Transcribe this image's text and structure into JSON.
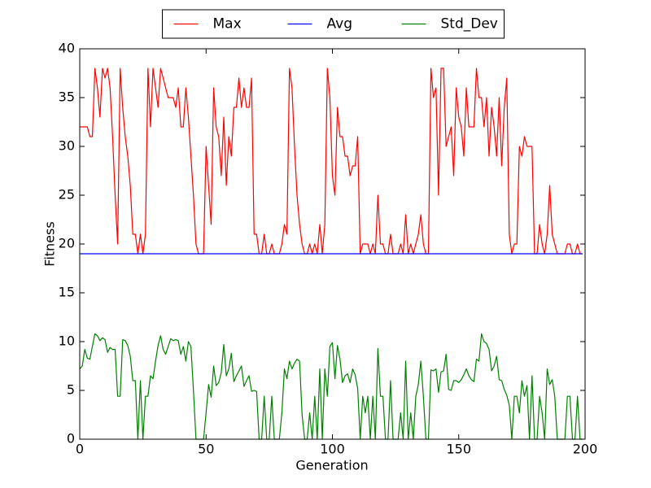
{
  "chart_data": {
    "type": "line",
    "xlabel": "Generation",
    "ylabel": "Fitness",
    "xlim": [
      0,
      200
    ],
    "xticks": [
      0,
      50,
      100,
      150,
      200
    ],
    "ylim": [
      0,
      40
    ],
    "yticks": [
      0,
      5,
      10,
      15,
      20,
      25,
      30,
      35,
      40
    ],
    "legend": "upper-center-outside",
    "x": [
      0,
      1,
      2,
      3,
      4,
      5,
      6,
      7,
      8,
      9,
      10,
      11,
      12,
      13,
      14,
      15,
      16,
      17,
      18,
      19,
      20,
      21,
      22,
      23,
      24,
      25,
      26,
      27,
      28,
      29,
      30,
      31,
      32,
      33,
      34,
      35,
      36,
      37,
      38,
      39,
      40,
      41,
      42,
      43,
      44,
      45,
      46,
      47,
      48,
      49,
      50,
      51,
      52,
      53,
      54,
      55,
      56,
      57,
      58,
      59,
      60,
      61,
      62,
      63,
      64,
      65,
      66,
      67,
      68,
      69,
      70,
      71,
      72,
      73,
      74,
      75,
      76,
      77,
      78,
      79,
      80,
      81,
      82,
      83,
      84,
      85,
      86,
      87,
      88,
      89,
      90,
      91,
      92,
      93,
      94,
      95,
      96,
      97,
      98,
      99,
      100,
      101,
      102,
      103,
      104,
      105,
      106,
      107,
      108,
      109,
      110,
      111,
      112,
      113,
      114,
      115,
      116,
      117,
      118,
      119,
      120,
      121,
      122,
      123,
      124,
      125,
      126,
      127,
      128,
      129,
      130,
      131,
      132,
      133,
      134,
      135,
      136,
      137,
      138,
      139,
      140,
      141,
      142,
      143,
      144,
      145,
      146,
      147,
      148,
      149,
      150,
      151,
      152,
      153,
      154,
      155,
      156,
      157,
      158,
      159,
      160,
      161,
      162,
      163,
      164,
      165,
      166,
      167,
      168,
      169,
      170,
      171,
      172,
      173,
      174,
      175,
      176,
      177,
      178,
      179,
      180,
      181,
      182,
      183,
      184,
      185,
      186,
      187,
      188,
      189,
      190,
      191,
      192,
      193,
      194,
      195,
      196,
      197,
      198,
      199
    ],
    "series": [
      {
        "name": "Max",
        "color": "#ff0000",
        "values": [
          32,
          32,
          32,
          32,
          31,
          31,
          38,
          36,
          33,
          38,
          37,
          38,
          36,
          31,
          25,
          20,
          38,
          34,
          31,
          29,
          26,
          21,
          21,
          19,
          21,
          19,
          21,
          38,
          32,
          38,
          36,
          34,
          38,
          37,
          36,
          35,
          35,
          35,
          34,
          36,
          32,
          32,
          36,
          33,
          29,
          25,
          20,
          19,
          19,
          19,
          30,
          26,
          22,
          36,
          32,
          31,
          27,
          33,
          26,
          31,
          29,
          34,
          34,
          37,
          34,
          36,
          34,
          34,
          37,
          21,
          21,
          19,
          19,
          21,
          19,
          19,
          20,
          19,
          19,
          19,
          20,
          22,
          21,
          38,
          36,
          30,
          25,
          22,
          20,
          19,
          19,
          20,
          19,
          20,
          19,
          22,
          19,
          22,
          38,
          35,
          27,
          25,
          34,
          31,
          31,
          29,
          29,
          27,
          28,
          28,
          31,
          19,
          20,
          20,
          20,
          19,
          20,
          19,
          25,
          20,
          20,
          19,
          19,
          21,
          19,
          19,
          19,
          20,
          19,
          23,
          19,
          20,
          19,
          20,
          21,
          23,
          20,
          19,
          19,
          38,
          35,
          36,
          25,
          38,
          38,
          30,
          31,
          32,
          27,
          36,
          33,
          32,
          29,
          36,
          32,
          32,
          32,
          38,
          35,
          35,
          32,
          35,
          29,
          34,
          32,
          29,
          35,
          28,
          34,
          37,
          21,
          19,
          20,
          20,
          30,
          29,
          31,
          30,
          30,
          30,
          19,
          19,
          22,
          20,
          19,
          21,
          26,
          21,
          20,
          19,
          19,
          19,
          19,
          20,
          20,
          19,
          19,
          20,
          19,
          19
        ]
      },
      {
        "name": "Avg",
        "color": "#0000ff",
        "values": [
          19,
          19,
          19,
          19,
          19,
          19,
          19,
          19,
          19,
          19,
          19,
          19,
          19,
          19,
          19,
          19,
          19,
          19,
          19,
          19,
          19,
          19,
          19,
          19,
          19,
          19,
          19,
          19,
          19,
          19,
          19,
          19,
          19,
          19,
          19,
          19,
          19,
          19,
          19,
          19,
          19,
          19,
          19,
          19,
          19,
          19,
          19,
          19,
          19,
          19,
          19,
          19,
          19,
          19,
          19,
          19,
          19,
          19,
          19,
          19,
          19,
          19,
          19,
          19,
          19,
          19,
          19,
          19,
          19,
          19,
          19,
          19,
          19,
          19,
          19,
          19,
          19,
          19,
          19,
          19,
          19,
          19,
          19,
          19,
          19,
          19,
          19,
          19,
          19,
          19,
          19,
          19,
          19,
          19,
          19,
          19,
          19,
          19,
          19,
          19,
          19,
          19,
          19,
          19,
          19,
          19,
          19,
          19,
          19,
          19,
          19,
          19,
          19,
          19,
          19,
          19,
          19,
          19,
          19,
          19,
          19,
          19,
          19,
          19,
          19,
          19,
          19,
          19,
          19,
          19,
          19,
          19,
          19,
          19,
          19,
          19,
          19,
          19,
          19,
          19,
          19,
          19,
          19,
          19,
          19,
          19,
          19,
          19,
          19,
          19,
          19,
          19,
          19,
          19,
          19,
          19,
          19,
          19,
          19,
          19,
          19,
          19,
          19,
          19,
          19,
          19,
          19,
          19,
          19,
          19,
          19,
          19,
          19,
          19,
          19,
          19,
          19,
          19,
          19,
          19,
          19,
          19,
          19,
          19,
          19,
          19,
          19,
          19,
          19,
          19,
          19,
          19,
          19,
          19,
          19,
          19,
          19,
          19,
          19,
          19
        ]
      },
      {
        "name": "Std_Dev",
        "color": "#008000",
        "values": [
          7.2,
          7.5,
          9.2,
          8.3,
          8.2,
          9.5,
          10.8,
          10.6,
          10.1,
          10.4,
          10.2,
          8.9,
          9.4,
          9.2,
          9.2,
          4.4,
          4.4,
          10.2,
          10.1,
          9.6,
          8.5,
          6,
          6,
          0,
          6,
          0,
          4.4,
          4.4,
          6.5,
          6.2,
          8,
          9.6,
          10.6,
          9.2,
          8.7,
          9.5,
          10.3,
          10.1,
          10.2,
          10.1,
          8.7,
          9.5,
          8,
          10,
          9.5,
          5,
          0,
          0,
          0,
          0,
          2.7,
          5.6,
          4.3,
          7.5,
          5.5,
          5.8,
          6.8,
          9.7,
          6.5,
          7.2,
          8.8,
          5.9,
          6.5,
          7,
          7.5,
          5.4,
          6,
          6.5,
          4.9,
          5,
          4.9,
          0,
          0,
          4.4,
          0,
          0,
          4.4,
          0,
          0,
          0,
          2.7,
          7.2,
          6.2,
          8,
          7.2,
          7.8,
          8.2,
          8,
          2.5,
          0,
          0,
          2.7,
          0,
          4.4,
          0,
          7.2,
          0,
          7.2,
          4.4,
          9.5,
          9.9,
          6.2,
          9.6,
          8.2,
          5.8,
          6.5,
          6.7,
          5.8,
          7.2,
          6.6,
          5.2,
          0,
          4.4,
          2.7,
          4.4,
          0,
          4.4,
          0,
          9.3,
          4.4,
          4.4,
          0,
          0,
          6,
          0,
          0,
          0,
          2.7,
          0,
          8,
          0,
          2.7,
          0,
          4.4,
          5.6,
          8,
          4.4,
          0,
          0,
          7.1,
          7,
          7.2,
          4.8,
          6.9,
          7,
          8.7,
          5.1,
          5,
          6,
          6,
          5.8,
          6.1,
          6.6,
          7.2,
          6.5,
          6.1,
          5.9,
          8.2,
          8,
          10.8,
          10,
          9.8,
          9.2,
          7,
          7.5,
          8.5,
          6.1,
          6,
          5.1,
          4.5,
          3.5,
          0,
          4.4,
          4.4,
          2.7,
          6,
          4.4,
          5.5,
          0,
          6.5,
          0,
          0,
          4.4,
          2.7,
          0,
          7.2,
          5.6,
          6.1,
          4.4,
          0,
          0,
          0,
          0,
          4.4,
          4.4,
          0,
          0,
          4.4,
          0,
          0
        ]
      }
    ]
  }
}
